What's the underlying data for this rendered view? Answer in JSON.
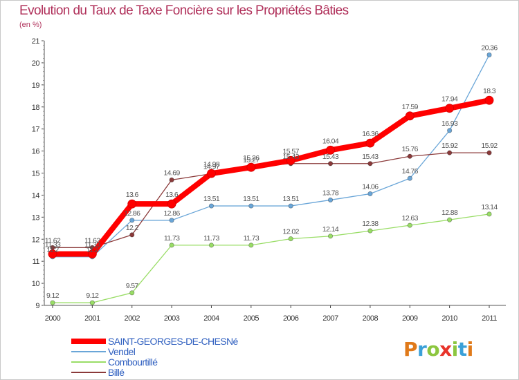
{
  "header": {
    "title": "Evolution du Taux de Taxe Foncière sur les Propriétés Bâties",
    "unit": "(en %)"
  },
  "brand": {
    "text": "Proxiti",
    "colors": [
      "#e07a1a",
      "#3aa0d8",
      "#8cc63f",
      "#e8332a",
      "#8cc63f",
      "#3aa0d8",
      "#e07a1a"
    ]
  },
  "chart_data": {
    "type": "line",
    "title": "Evolution du Taux de Taxe Foncière sur les Propriétés Bâties",
    "ylabel": "(en %)",
    "xlabel": "",
    "categories": [
      "2000",
      "2001",
      "2002",
      "2003",
      "2004",
      "2005",
      "2006",
      "2007",
      "2008",
      "2009",
      "2010",
      "2011"
    ],
    "ylim": [
      9,
      21
    ],
    "yticks": [
      9,
      10,
      11,
      12,
      13,
      14,
      15,
      16,
      17,
      18,
      19,
      20,
      21
    ],
    "grid": false,
    "legend": "bottom-left",
    "series": [
      {
        "name": "SAINT-GEORGES-DE-CHESNé",
        "color": "#ff0000",
        "values": [
          11.33,
          11.33,
          13.6,
          13.6,
          14.98,
          15.26,
          15.57,
          16.04,
          16.36,
          17.59,
          17.94,
          18.3
        ],
        "labels": [
          "11.33",
          "11.33",
          "13.6",
          "13.6",
          "14.98",
          "15.26",
          "15.57",
          "16.04",
          "16.36",
          "17.59",
          "17.94",
          "18.3"
        ]
      },
      {
        "name": "Vendel",
        "color": "#6aa6d8",
        "values": [
          11.2,
          11.2,
          12.86,
          12.86,
          13.51,
          13.51,
          13.51,
          13.78,
          14.06,
          14.76,
          16.93,
          20.36
        ],
        "labels": [
          "11.2",
          "11.2",
          "12.86",
          "12.86",
          "13.51",
          "13.51",
          "13.51",
          "13.78",
          "14.06",
          "14.76",
          "16.93",
          "20.36"
        ]
      },
      {
        "name": "Combourtillé",
        "color": "#99dd66",
        "values": [
          9.12,
          9.12,
          9.57,
          11.73,
          11.73,
          11.73,
          12.02,
          12.14,
          12.38,
          12.63,
          12.88,
          13.14
        ],
        "labels": [
          "9.12",
          "9.12",
          "9.57",
          "11.73",
          "11.73",
          "11.73",
          "12.02",
          "12.14",
          "12.38",
          "12.63",
          "12.88",
          "13.14"
        ]
      },
      {
        "name": "Billé",
        "color": "#8b3a3a",
        "values": [
          11.62,
          11.62,
          12.2,
          14.69,
          14.97,
          15.27,
          15.43,
          15.43,
          15.43,
          15.76,
          15.92,
          15.92
        ],
        "labels": [
          "11.62",
          "11.62",
          "12.2",
          "14.69",
          "14.97",
          "15.27",
          "15.43",
          "15.43",
          "15.43",
          "15.76",
          "15.92",
          "15.92"
        ]
      }
    ]
  }
}
